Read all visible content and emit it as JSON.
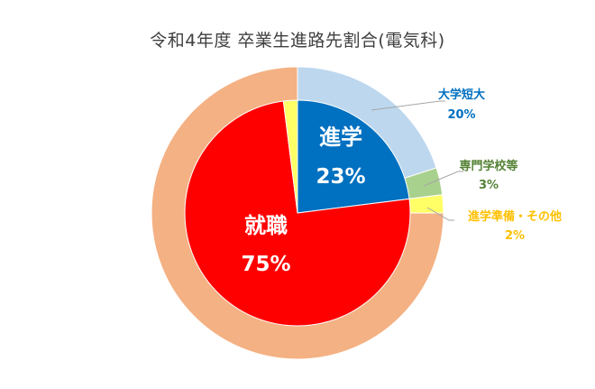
{
  "chart_data": {
    "type": "pie",
    "title": "令和4年度 卒業生進路先割合(電気科)",
    "inner": {
      "slices": [
        {
          "label": "進学",
          "pct_text": "23%",
          "value": 23,
          "color": "#0070C0"
        },
        {
          "label": "就職",
          "pct_text": "75%",
          "value": 75,
          "color": "#FF0000"
        }
      ]
    },
    "outer": {
      "slices": [
        {
          "label": "大学短大",
          "pct_text": "20%",
          "value": 20,
          "color": "#BDD7EE",
          "label_color": "#0070C0"
        },
        {
          "label": "専門学校等",
          "pct_text": "3%",
          "value": 3,
          "color": "#A9D18E",
          "label_color": "#548235"
        },
        {
          "label": "進学準備・その他",
          "pct_text": "2%",
          "value": 2,
          "color": "#FFFF66",
          "label_color": "#FFC000"
        },
        {
          "label": "",
          "pct_text": "",
          "value": 75,
          "color": "#F4B183"
        }
      ]
    }
  }
}
